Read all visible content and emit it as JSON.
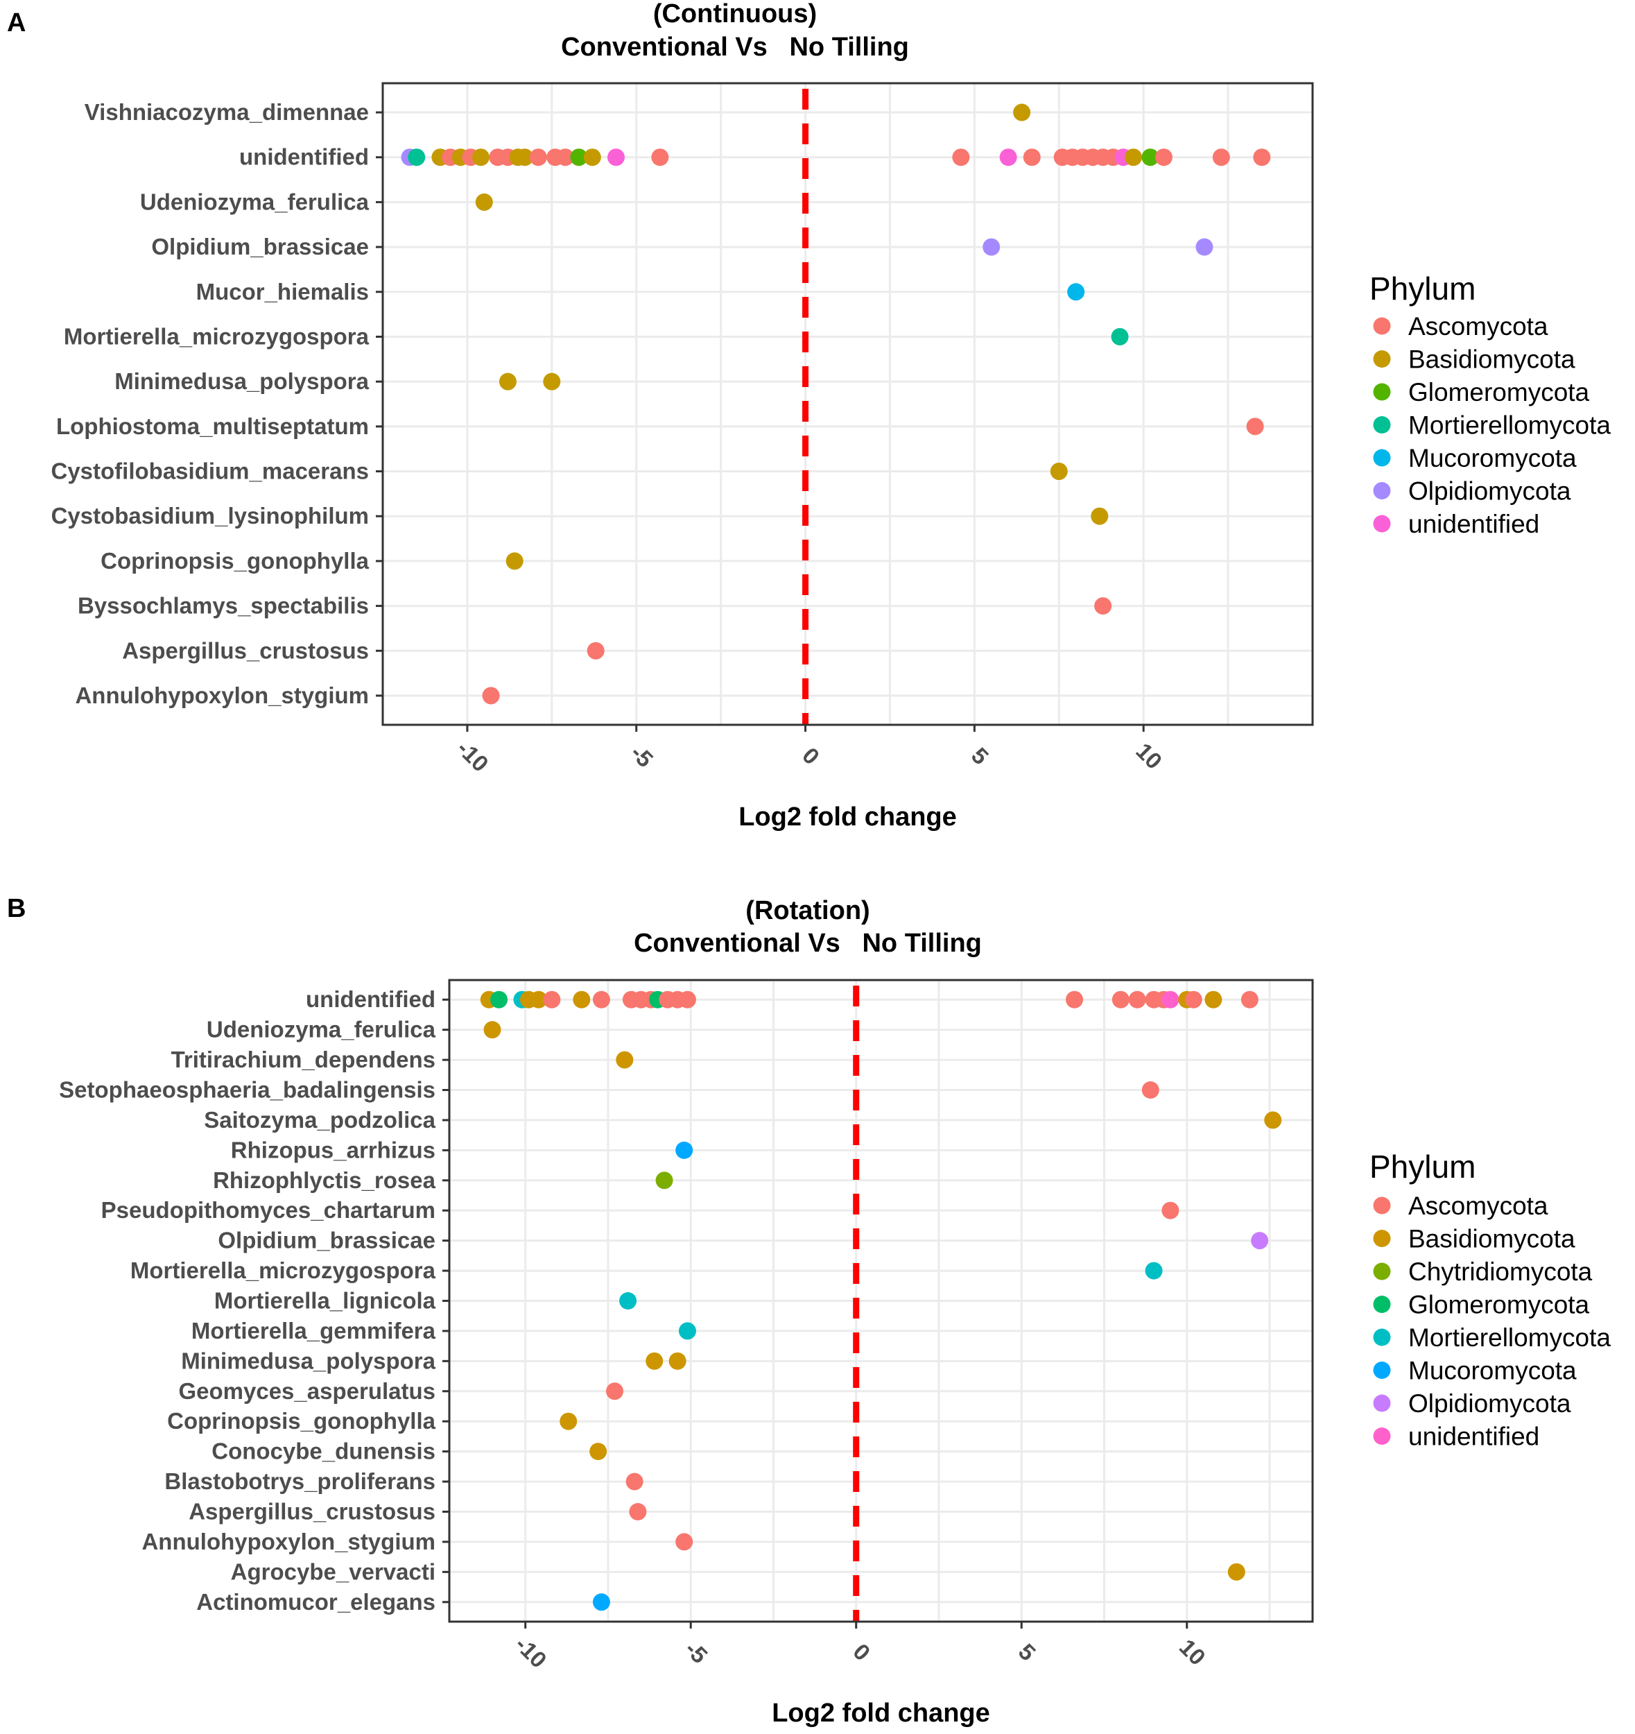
{
  "chart_data": [
    {
      "type": "scatter",
      "panel_letter": "A",
      "title": "(Continuous)",
      "subtitle": "Conventional Vs   No Tilling",
      "xlabel": "Log2 fold change",
      "ylabel": "",
      "xlim": [
        -12.5,
        15
      ],
      "x_ticks": [
        -10,
        -5,
        0,
        5,
        10
      ],
      "x_tick_labels": [
        "-10",
        "-5",
        "0",
        "5",
        "10"
      ],
      "reference_line_x": 0,
      "grid": true,
      "legend_position": "right",
      "legend_title": "Phylum",
      "legend": [
        {
          "name": "Ascomycota",
          "color": "#F8766D"
        },
        {
          "name": "Basidiomycota",
          "color": "#C49A00"
        },
        {
          "name": "Glomeromycota",
          "color": "#53B400"
        },
        {
          "name": "Mortierellomycota",
          "color": "#00C094"
        },
        {
          "name": "Mucoromycota",
          "color": "#00B6EB"
        },
        {
          "name": "Olpidiomycota",
          "color": "#A58AFF"
        },
        {
          "name": "unidentified",
          "color": "#FB61D7"
        }
      ],
      "categories": [
        "Vishniacozyma_dimennae",
        "unidentified",
        "Udeniozyma_ferulica",
        "Olpidium_brassicae",
        "Mucor_hiemalis",
        "Mortierella_microzygospora",
        "Minimedusa_polyspora",
        "Lophiostoma_multiseptatum",
        "Cystofilobasidium_macerans",
        "Cystobasidium_lysinophilum",
        "Coprinopsis_gonophylla",
        "Byssochlamys_spectabilis",
        "Aspergillus_crustosus",
        "Annulohypoxylon_stygium"
      ],
      "points": [
        {
          "y": "Vishniacozyma_dimennae",
          "x": 6.4,
          "phylum": "Basidiomycota"
        },
        {
          "y": "unidentified",
          "x": -11.7,
          "phylum": "Olpidiomycota"
        },
        {
          "y": "unidentified",
          "x": -11.5,
          "phylum": "Mortierellomycota"
        },
        {
          "y": "unidentified",
          "x": -10.8,
          "phylum": "Basidiomycota"
        },
        {
          "y": "unidentified",
          "x": -10.5,
          "phylum": "Ascomycota"
        },
        {
          "y": "unidentified",
          "x": -10.2,
          "phylum": "Basidiomycota"
        },
        {
          "y": "unidentified",
          "x": -9.9,
          "phylum": "Ascomycota"
        },
        {
          "y": "unidentified",
          "x": -9.6,
          "phylum": "Basidiomycota"
        },
        {
          "y": "unidentified",
          "x": -9.1,
          "phylum": "Ascomycota"
        },
        {
          "y": "unidentified",
          "x": -8.8,
          "phylum": "Ascomycota"
        },
        {
          "y": "unidentified",
          "x": -8.5,
          "phylum": "Basidiomycota"
        },
        {
          "y": "unidentified",
          "x": -8.3,
          "phylum": "Basidiomycota"
        },
        {
          "y": "unidentified",
          "x": -7.9,
          "phylum": "Ascomycota"
        },
        {
          "y": "unidentified",
          "x": -7.4,
          "phylum": "Ascomycota"
        },
        {
          "y": "unidentified",
          "x": -7.1,
          "phylum": "Ascomycota"
        },
        {
          "y": "unidentified",
          "x": -6.7,
          "phylum": "Glomeromycota"
        },
        {
          "y": "unidentified",
          "x": -6.3,
          "phylum": "Basidiomycota"
        },
        {
          "y": "unidentified",
          "x": -5.6,
          "phylum": "unidentified"
        },
        {
          "y": "unidentified",
          "x": -4.3,
          "phylum": "Ascomycota"
        },
        {
          "y": "unidentified",
          "x": 4.6,
          "phylum": "Ascomycota"
        },
        {
          "y": "unidentified",
          "x": 6.0,
          "phylum": "unidentified"
        },
        {
          "y": "unidentified",
          "x": 6.7,
          "phylum": "Ascomycota"
        },
        {
          "y": "unidentified",
          "x": 7.6,
          "phylum": "Ascomycota"
        },
        {
          "y": "unidentified",
          "x": 7.9,
          "phylum": "Ascomycota"
        },
        {
          "y": "unidentified",
          "x": 8.2,
          "phylum": "Ascomycota"
        },
        {
          "y": "unidentified",
          "x": 8.5,
          "phylum": "Ascomycota"
        },
        {
          "y": "unidentified",
          "x": 8.8,
          "phylum": "Ascomycota"
        },
        {
          "y": "unidentified",
          "x": 9.1,
          "phylum": "Ascomycota"
        },
        {
          "y": "unidentified",
          "x": 9.4,
          "phylum": "unidentified"
        },
        {
          "y": "unidentified",
          "x": 9.7,
          "phylum": "Basidiomycota"
        },
        {
          "y": "unidentified",
          "x": 10.2,
          "phylum": "Glomeromycota"
        },
        {
          "y": "unidentified",
          "x": 10.6,
          "phylum": "Ascomycota"
        },
        {
          "y": "unidentified",
          "x": 12.3,
          "phylum": "Ascomycota"
        },
        {
          "y": "unidentified",
          "x": 13.5,
          "phylum": "Ascomycota"
        },
        {
          "y": "Udeniozyma_ferulica",
          "x": -9.5,
          "phylum": "Basidiomycota"
        },
        {
          "y": "Olpidium_brassicae",
          "x": 5.5,
          "phylum": "Olpidiomycota"
        },
        {
          "y": "Olpidium_brassicae",
          "x": 11.8,
          "phylum": "Olpidiomycota"
        },
        {
          "y": "Mucor_hiemalis",
          "x": 8.0,
          "phylum": "Mucoromycota"
        },
        {
          "y": "Mortierella_microzygospora",
          "x": 9.3,
          "phylum": "Mortierellomycota"
        },
        {
          "y": "Minimedusa_polyspora",
          "x": -8.8,
          "phylum": "Basidiomycota"
        },
        {
          "y": "Minimedusa_polyspora",
          "x": -7.5,
          "phylum": "Basidiomycota"
        },
        {
          "y": "Lophiostoma_multiseptatum",
          "x": 13.3,
          "phylum": "Ascomycota"
        },
        {
          "y": "Cystofilobasidium_macerans",
          "x": 7.5,
          "phylum": "Basidiomycota"
        },
        {
          "y": "Cystobasidium_lysinophilum",
          "x": 8.7,
          "phylum": "Basidiomycota"
        },
        {
          "y": "Coprinopsis_gonophylla",
          "x": -8.6,
          "phylum": "Basidiomycota"
        },
        {
          "y": "Byssochlamys_spectabilis",
          "x": 8.8,
          "phylum": "Ascomycota"
        },
        {
          "y": "Aspergillus_crustosus",
          "x": -6.2,
          "phylum": "Ascomycota"
        },
        {
          "y": "Annulohypoxylon_stygium",
          "x": -9.3,
          "phylum": "Ascomycota"
        }
      ]
    },
    {
      "type": "scatter",
      "panel_letter": "B",
      "title": "(Rotation)",
      "subtitle": "Conventional Vs   No Tilling",
      "xlabel": "Log2 fold change",
      "ylabel": "",
      "xlim": [
        -12.3,
        13.8
      ],
      "x_ticks": [
        -10,
        -5,
        0,
        5,
        10
      ],
      "x_tick_labels": [
        "-10",
        "-5",
        "0",
        "5",
        "10"
      ],
      "reference_line_x": 0,
      "grid": true,
      "legend_position": "right",
      "legend_title": "Phylum",
      "legend": [
        {
          "name": "Ascomycota",
          "color": "#F8766D"
        },
        {
          "name": "Basidiomycota",
          "color": "#CD9600"
        },
        {
          "name": "Chytridiomycota",
          "color": "#7CAE00"
        },
        {
          "name": "Glomeromycota",
          "color": "#00BE67"
        },
        {
          "name": "Mortierellomycota",
          "color": "#00BFC4"
        },
        {
          "name": "Mucoromycota",
          "color": "#00A9FF"
        },
        {
          "name": "Olpidiomycota",
          "color": "#C77CFF"
        },
        {
          "name": "unidentified",
          "color": "#FF61CC"
        }
      ],
      "categories": [
        "unidentified",
        "Udeniozyma_ferulica",
        "Tritirachium_dependens",
        "Setophaeosphaeria_badalingensis",
        "Saitozyma_podzolica",
        "Rhizopus_arrhizus",
        "Rhizophlyctis_rosea",
        "Pseudopithomyces_chartarum",
        "Olpidium_brassicae",
        "Mortierella_microzygospora",
        "Mortierella_lignicola",
        "Mortierella_gemmifera",
        "Minimedusa_polyspora",
        "Geomyces_asperulatus",
        "Coprinopsis_gonophylla",
        "Conocybe_dunensis",
        "Blastobotrys_proliferans",
        "Aspergillus_crustosus",
        "Annulohypoxylon_stygium",
        "Agrocybe_vervacti",
        "Actinomucor_elegans"
      ],
      "points": [
        {
          "y": "unidentified",
          "x": -11.1,
          "phylum": "Basidiomycota"
        },
        {
          "y": "unidentified",
          "x": -10.8,
          "phylum": "Glomeromycota"
        },
        {
          "y": "unidentified",
          "x": -10.1,
          "phylum": "Mortierellomycota"
        },
        {
          "y": "unidentified",
          "x": -9.9,
          "phylum": "Basidiomycota"
        },
        {
          "y": "unidentified",
          "x": -9.6,
          "phylum": "Basidiomycota"
        },
        {
          "y": "unidentified",
          "x": -9.2,
          "phylum": "Ascomycota"
        },
        {
          "y": "unidentified",
          "x": -8.3,
          "phylum": "Basidiomycota"
        },
        {
          "y": "unidentified",
          "x": -7.7,
          "phylum": "Ascomycota"
        },
        {
          "y": "unidentified",
          "x": -6.8,
          "phylum": "Ascomycota"
        },
        {
          "y": "unidentified",
          "x": -6.5,
          "phylum": "Ascomycota"
        },
        {
          "y": "unidentified",
          "x": -6.2,
          "phylum": "Ascomycota"
        },
        {
          "y": "unidentified",
          "x": -6.0,
          "phylum": "Glomeromycota"
        },
        {
          "y": "unidentified",
          "x": -5.7,
          "phylum": "Ascomycota"
        },
        {
          "y": "unidentified",
          "x": -5.4,
          "phylum": "Ascomycota"
        },
        {
          "y": "unidentified",
          "x": -5.1,
          "phylum": "Ascomycota"
        },
        {
          "y": "unidentified",
          "x": 6.6,
          "phylum": "Ascomycota"
        },
        {
          "y": "unidentified",
          "x": 8.0,
          "phylum": "Ascomycota"
        },
        {
          "y": "unidentified",
          "x": 8.5,
          "phylum": "Ascomycota"
        },
        {
          "y": "unidentified",
          "x": 9.0,
          "phylum": "Ascomycota"
        },
        {
          "y": "unidentified",
          "x": 9.3,
          "phylum": "Ascomycota"
        },
        {
          "y": "unidentified",
          "x": 9.5,
          "phylum": "unidentified"
        },
        {
          "y": "unidentified",
          "x": 10.0,
          "phylum": "Basidiomycota"
        },
        {
          "y": "unidentified",
          "x": 10.2,
          "phylum": "Ascomycota"
        },
        {
          "y": "unidentified",
          "x": 10.8,
          "phylum": "Basidiomycota"
        },
        {
          "y": "unidentified",
          "x": 11.9,
          "phylum": "Ascomycota"
        },
        {
          "y": "Udeniozyma_ferulica",
          "x": -11.0,
          "phylum": "Basidiomycota"
        },
        {
          "y": "Tritirachium_dependens",
          "x": -7.0,
          "phylum": "Basidiomycota"
        },
        {
          "y": "Setophaeosphaeria_badalingensis",
          "x": 8.9,
          "phylum": "Ascomycota"
        },
        {
          "y": "Saitozyma_podzolica",
          "x": 12.6,
          "phylum": "Basidiomycota"
        },
        {
          "y": "Rhizopus_arrhizus",
          "x": -5.2,
          "phylum": "Mucoromycota"
        },
        {
          "y": "Rhizophlyctis_rosea",
          "x": -5.8,
          "phylum": "Chytridiomycota"
        },
        {
          "y": "Pseudopithomyces_chartarum",
          "x": 9.5,
          "phylum": "Ascomycota"
        },
        {
          "y": "Olpidium_brassicae",
          "x": 12.2,
          "phylum": "Olpidiomycota"
        },
        {
          "y": "Mortierella_microzygospora",
          "x": 9.0,
          "phylum": "Mortierellomycota"
        },
        {
          "y": "Mortierella_lignicola",
          "x": -6.9,
          "phylum": "Mortierellomycota"
        },
        {
          "y": "Mortierella_gemmifera",
          "x": -5.1,
          "phylum": "Mortierellomycota"
        },
        {
          "y": "Minimedusa_polyspora",
          "x": -6.1,
          "phylum": "Basidiomycota"
        },
        {
          "y": "Minimedusa_polyspora",
          "x": -5.4,
          "phylum": "Basidiomycota"
        },
        {
          "y": "Geomyces_asperulatus",
          "x": -7.3,
          "phylum": "Ascomycota"
        },
        {
          "y": "Coprinopsis_gonophylla",
          "x": -8.7,
          "phylum": "Basidiomycota"
        },
        {
          "y": "Conocybe_dunensis",
          "x": -7.8,
          "phylum": "Basidiomycota"
        },
        {
          "y": "Blastobotrys_proliferans",
          "x": -6.7,
          "phylum": "Ascomycota"
        },
        {
          "y": "Aspergillus_crustosus",
          "x": -6.6,
          "phylum": "Ascomycota"
        },
        {
          "y": "Annulohypoxylon_stygium",
          "x": -5.2,
          "phylum": "Ascomycota"
        },
        {
          "y": "Agrocybe_vervacti",
          "x": 11.5,
          "phylum": "Basidiomycota"
        },
        {
          "y": "Actinomucor_elegans",
          "x": -7.7,
          "phylum": "Mucoromycota"
        }
      ]
    }
  ]
}
